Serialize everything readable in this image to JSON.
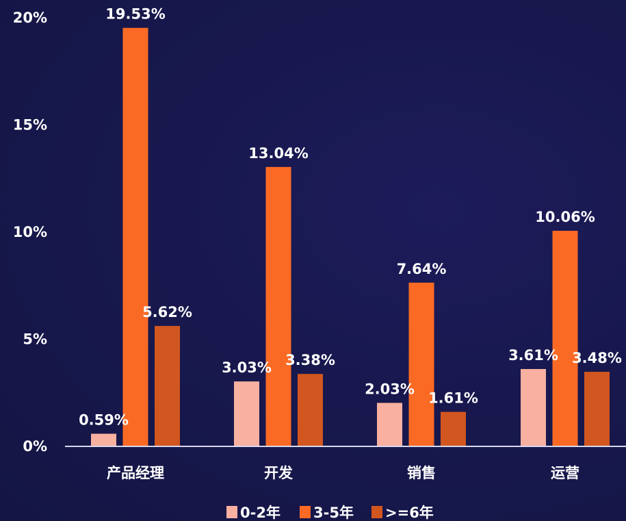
{
  "chart_data": {
    "type": "bar",
    "categories": [
      "产品经理",
      "开发",
      "销售",
      "运营"
    ],
    "series": [
      {
        "name": "0-2年",
        "color": "#f8b0a0",
        "values": [
          0.59,
          3.03,
          2.03,
          3.61
        ],
        "labels": [
          "0.59%",
          "3.03%",
          "2.03%",
          "3.61%"
        ]
      },
      {
        "name": "3-5年",
        "color": "#fb6a24",
        "values": [
          19.53,
          13.04,
          7.64,
          10.06
        ],
        "labels": [
          "19.53%",
          "13.04%",
          "7.64%",
          "10.06%"
        ]
      },
      {
        "name": ">=6年",
        "color": "#d2561f",
        "values": [
          5.62,
          3.38,
          1.61,
          3.48
        ],
        "labels": [
          "5.62%",
          "3.38%",
          "1.61%",
          "3.48%"
        ]
      }
    ],
    "yticks": [
      0,
      5,
      10,
      15,
      20
    ],
    "ytick_labels": [
      "0%",
      "5%",
      "10%",
      "15%",
      "20%"
    ],
    "ylim": [
      0,
      20
    ],
    "legend_position": "bottom",
    "grid": false,
    "axis_color": "#d8d8ee"
  }
}
